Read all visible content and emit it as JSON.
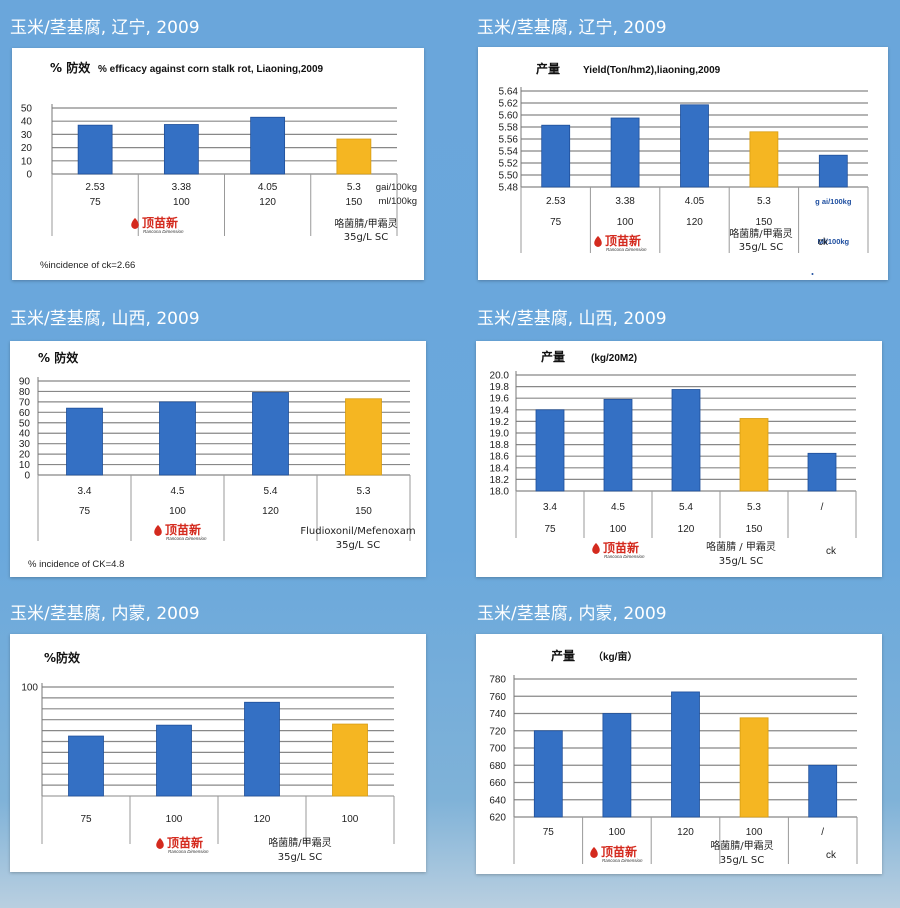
{
  "colors": {
    "series_blue": "#3470c4",
    "series_blue_dark": "#1f4f99",
    "highlight_gold": "#f5b622",
    "grid": "#888888",
    "logo_red": "#d42a1e"
  },
  "logo": {
    "name": "顶苗新",
    "sub": "Rancona Dimension"
  },
  "panels": [
    {
      "section_title": "玉米/茎基腐, 辽宁, 2009",
      "cn_label": "% 防效",
      "en_label": "% efficacy against corn stalk rot, Liaoning,2009",
      "row1": [
        "2.53",
        "3.38",
        "4.05",
        "5.3"
      ],
      "row2": [
        "75",
        "100",
        "120",
        "150"
      ],
      "row1_unit": "gai/100kg",
      "row2_unit": "ml/100kg",
      "product": [
        "咯菌腈/甲霜灵",
        "35g/L SC"
      ],
      "ck_label": "",
      "note": "%incidence of ck=2.66"
    },
    {
      "section_title": "玉米/茎基腐, 辽宁, 2009",
      "cn_label": "产量",
      "en_label": "Yield(Ton/hm2),liaoning,2009",
      "row1": [
        "2.53",
        "3.38",
        "4.05",
        "5.3",
        ""
      ],
      "row2": [
        "75",
        "100",
        "120",
        "150",
        ""
      ],
      "row1_unit": "g ai/100kg",
      "row2_unit": "Ml/100kg",
      "product": [
        "咯菌腈/甲霜灵",
        "35g/L SC"
      ],
      "ck_label": "ck",
      "note": ""
    },
    {
      "section_title": "玉米/茎基腐, 山西, 2009",
      "cn_label": "% 防效",
      "en_label": "",
      "row1": [
        "3.4",
        "4.5",
        "5.4",
        "5.3"
      ],
      "row2": [
        "75",
        "100",
        "120",
        "150"
      ],
      "row1_unit": "",
      "row2_unit": "",
      "product": [
        "Fludioxonil/Mefenoxam",
        "35g/L  SC"
      ],
      "ck_label": "",
      "note": "% incidence of CK=4.8"
    },
    {
      "section_title": "玉米/茎基腐, 山西, 2009",
      "cn_label": "产量",
      "en_label": "(kg/20M2)",
      "row1": [
        "3.4",
        "4.5",
        "5.4",
        "5.3",
        "/"
      ],
      "row2": [
        "75",
        "100",
        "120",
        "150",
        ""
      ],
      "row1_unit": "",
      "row2_unit": "",
      "product": [
        "咯菌腈 / 甲霜灵",
        "35g/L SC"
      ],
      "ck_label": "ck",
      "note": ""
    },
    {
      "section_title": "玉米/茎基腐, 内蒙, 2009",
      "cn_label": "%防效",
      "en_label": "",
      "row1": [
        "75",
        "100",
        "120",
        "100"
      ],
      "row2": [],
      "row1_unit": "",
      "row2_unit": "",
      "product": [
        "咯菌腈/甲霜灵",
        "35g/L SC"
      ],
      "ck_label": "",
      "note": ""
    },
    {
      "section_title": "玉米/茎基腐, 内蒙, 2009",
      "cn_label": "产量",
      "en_label": "（kg/亩）",
      "row1": [
        "75",
        "100",
        "120",
        "100",
        "/"
      ],
      "row2": [],
      "row1_unit": "",
      "row2_unit": "",
      "product": [
        "咯菌腈/甲霜灵",
        "35g/L SC"
      ],
      "ck_label": "ck",
      "note": ""
    }
  ],
  "chart_data": [
    {
      "type": "bar",
      "title": "% efficacy against corn stalk rot, Liaoning,2009",
      "categories": [
        "75",
        "100",
        "120",
        "150"
      ],
      "values": [
        37,
        37.5,
        43,
        26.5
      ],
      "highlight_index": 3,
      "ylim": [
        0,
        50
      ],
      "yticks": [
        0,
        10,
        20,
        30,
        40,
        50
      ],
      "grid": true
    },
    {
      "type": "bar",
      "title": "Yield(Ton/hm2),liaoning,2009",
      "categories": [
        "75",
        "100",
        "120",
        "150",
        "ck"
      ],
      "values": [
        5.583,
        5.595,
        5.617,
        5.572,
        5.533
      ],
      "highlight_index": 3,
      "ylim": [
        5.48,
        5.64
      ],
      "yticks": [
        5.48,
        5.5,
        5.52,
        5.54,
        5.56,
        5.58,
        5.6,
        5.62,
        5.64
      ],
      "grid": true
    },
    {
      "type": "bar",
      "title": "% 防效",
      "categories": [
        "75",
        "100",
        "120",
        "150"
      ],
      "values": [
        64,
        70,
        79,
        73
      ],
      "highlight_index": 3,
      "ylim": [
        0,
        90
      ],
      "yticks": [
        0,
        10,
        20,
        30,
        40,
        50,
        60,
        70,
        80,
        90
      ],
      "grid": true
    },
    {
      "type": "bar",
      "title": "产量 (kg/20M2)",
      "categories": [
        "75",
        "100",
        "120",
        "150",
        "ck"
      ],
      "values": [
        19.4,
        19.58,
        19.75,
        19.25,
        18.65
      ],
      "highlight_index": 3,
      "ylim": [
        18,
        20
      ],
      "yticks": [
        18,
        18.2,
        18.4,
        18.6,
        18.8,
        19,
        19.2,
        19.4,
        19.6,
        19.8,
        20
      ],
      "grid": true
    },
    {
      "type": "bar",
      "title": "%防效",
      "categories": [
        "75",
        "100",
        "120",
        "100"
      ],
      "values": [
        55,
        65,
        86,
        66
      ],
      "highlight_index": 3,
      "ylim": [
        0,
        100
      ],
      "yticks": [
        100
      ],
      "grid": true
    },
    {
      "type": "bar",
      "title": "产量 （kg/亩）",
      "categories": [
        "75",
        "100",
        "120",
        "100",
        "/"
      ],
      "values": [
        720,
        740,
        765,
        735,
        680
      ],
      "highlight_index": 3,
      "ylim": [
        620,
        780
      ],
      "yticks": [
        620,
        640,
        660,
        680,
        700,
        720,
        740,
        760,
        780
      ],
      "grid": true
    }
  ]
}
